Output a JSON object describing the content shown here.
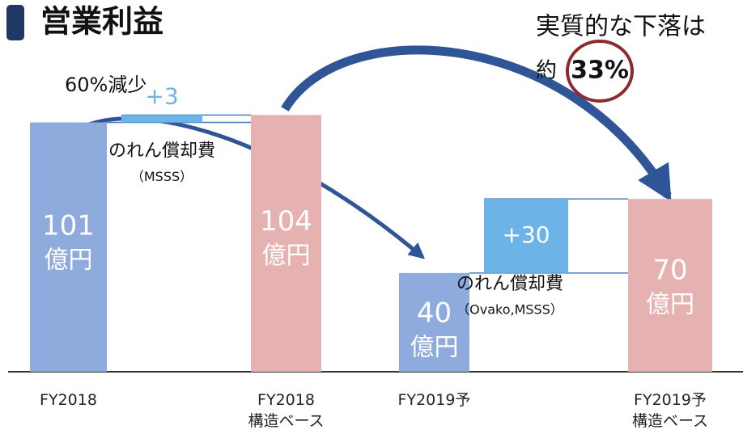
{
  "chart_data": {
    "type": "waterfall",
    "title": "営業利益",
    "categories": [
      "FY2018",
      "FY2018\n構造ベース",
      "FY2019予",
      "FY2019予\n構造ベース"
    ],
    "values": [
      101,
      104,
      40,
      70
    ],
    "colors": [
      "#8faadc",
      "#e6b1b1",
      "#8faadc",
      "#e6b1b1"
    ],
    "unit": "億円",
    "steps": {
      "values": [
        3,
        30
      ],
      "value_labels": [
        "+3",
        "+30"
      ],
      "color": "#6cb4e8",
      "notes": [
        "のれん償却費",
        "のれん償却費"
      ],
      "subnotes": [
        "（MSSS）",
        "（Ovako,MSSS）"
      ]
    },
    "annotations": [
      "60%減少",
      "実質的な下落は",
      "約",
      "33%"
    ],
    "ylim": [
      0,
      110
    ]
  }
}
